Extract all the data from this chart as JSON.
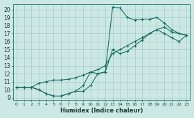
{
  "xlabel": "Humidex (Indice chaleur)",
  "bg_color": "#cce8e4",
  "grid_color": "#aaceca",
  "line_color": "#1a6e62",
  "xlim": [
    -0.5,
    23.5
  ],
  "ylim": [
    8.7,
    20.7
  ],
  "xticks": [
    0,
    1,
    2,
    3,
    4,
    5,
    6,
    7,
    8,
    9,
    10,
    11,
    12,
    13,
    14,
    15,
    16,
    17,
    18,
    19,
    20,
    21,
    22,
    23
  ],
  "yticks": [
    9,
    10,
    11,
    12,
    13,
    14,
    15,
    16,
    17,
    18,
    19,
    20
  ],
  "line1_x": [
    0,
    1,
    2,
    3,
    4,
    5,
    6,
    7,
    8,
    9,
    10,
    11,
    12,
    13,
    14,
    15,
    16,
    17,
    18,
    19,
    20,
    21,
    22,
    23
  ],
  "line1_y": [
    10.3,
    10.3,
    10.3,
    10.0,
    9.5,
    9.2,
    9.2,
    9.5,
    9.8,
    9.8,
    10.5,
    12.0,
    12.2,
    20.3,
    20.2,
    19.0,
    18.7,
    18.8,
    18.8,
    19.0,
    18.3,
    17.5,
    17.0,
    16.8
  ],
  "line2_x": [
    0,
    1,
    2,
    3,
    4,
    5,
    6,
    7,
    8,
    9,
    10,
    11,
    12,
    13,
    14,
    15,
    16,
    17,
    18,
    19,
    20,
    21,
    22,
    23
  ],
  "line2_y": [
    10.3,
    10.3,
    10.3,
    10.8,
    11.0,
    11.2,
    11.2,
    11.3,
    11.5,
    11.8,
    12.2,
    12.5,
    13.0,
    14.5,
    15.0,
    15.5,
    16.0,
    16.5,
    17.0,
    17.5,
    17.8,
    17.2,
    17.0,
    16.8
  ],
  "line3_x": [
    0,
    1,
    2,
    3,
    4,
    5,
    6,
    7,
    8,
    9,
    10,
    11,
    12,
    13,
    14,
    15,
    16,
    17,
    18,
    19,
    20,
    21,
    22,
    23
  ],
  "line3_y": [
    10.3,
    10.3,
    10.3,
    10.0,
    9.5,
    9.2,
    9.2,
    9.5,
    9.8,
    10.5,
    12.2,
    12.0,
    12.2,
    15.0,
    14.5,
    14.8,
    15.5,
    16.2,
    17.0,
    17.5,
    17.0,
    16.5,
    16.0,
    16.8
  ],
  "xtick_fontsize": 4.5,
  "ytick_fontsize": 5.5,
  "xlabel_fontsize": 6.0
}
